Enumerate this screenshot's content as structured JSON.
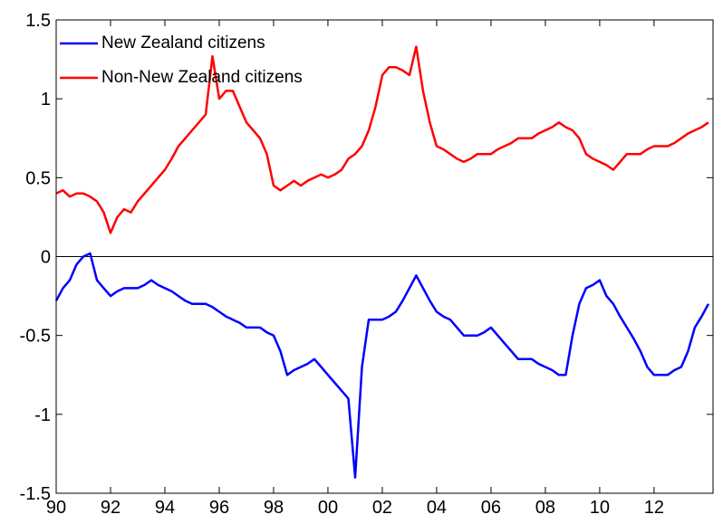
{
  "chart_data": {
    "type": "line",
    "x": [
      1990,
      1990.25,
      1990.5,
      1990.75,
      1991,
      1991.25,
      1991.5,
      1991.75,
      1992,
      1992.25,
      1992.5,
      1992.75,
      1993,
      1993.25,
      1993.5,
      1993.75,
      1994,
      1994.25,
      1994.5,
      1994.75,
      1995,
      1995.25,
      1995.5,
      1995.75,
      1996,
      1996.25,
      1996.5,
      1996.75,
      1997,
      1997.25,
      1997.5,
      1997.75,
      1998,
      1998.25,
      1998.5,
      1998.75,
      1999,
      1999.25,
      1999.5,
      1999.75,
      2000,
      2000.25,
      2000.5,
      2000.75,
      2001,
      2001.25,
      2001.5,
      2001.75,
      2002,
      2002.25,
      2002.5,
      2002.75,
      2003,
      2003.25,
      2003.5,
      2003.75,
      2004,
      2004.25,
      2004.5,
      2004.75,
      2005,
      2005.25,
      2005.5,
      2005.75,
      2006,
      2006.25,
      2006.5,
      2006.75,
      2007,
      2007.25,
      2007.5,
      2007.75,
      2008,
      2008.25,
      2008.5,
      2008.75,
      2009,
      2009.25,
      2009.5,
      2009.75,
      2010,
      2010.25,
      2010.5,
      2010.75,
      2011,
      2011.25,
      2011.5,
      2011.75,
      2012,
      2012.25,
      2012.5,
      2012.75,
      2013,
      2013.25,
      2013.5,
      2013.75,
      2014
    ],
    "series": [
      {
        "name": "New Zealand citizens",
        "color": "#0000ff",
        "values": [
          -0.28,
          -0.2,
          -0.15,
          -0.05,
          0,
          0.02,
          -0.15,
          -0.2,
          -0.25,
          -0.22,
          -0.2,
          -0.2,
          -0.2,
          -0.18,
          -0.15,
          -0.18,
          -0.2,
          -0.22,
          -0.25,
          -0.28,
          -0.3,
          -0.3,
          -0.3,
          -0.32,
          -0.35,
          -0.38,
          -0.4,
          -0.42,
          -0.45,
          -0.45,
          -0.45,
          -0.48,
          -0.5,
          -0.6,
          -0.75,
          -0.72,
          -0.7,
          -0.68,
          -0.65,
          -0.7,
          -0.75,
          -0.8,
          -0.85,
          -0.9,
          -1.4,
          -0.7,
          -0.4,
          -0.4,
          -0.4,
          -0.38,
          -0.35,
          -0.28,
          -0.2,
          -0.12,
          -0.2,
          -0.28,
          -0.35,
          -0.38,
          -0.4,
          -0.45,
          -0.5,
          -0.5,
          -0.5,
          -0.48,
          -0.45,
          -0.5,
          -0.55,
          -0.6,
          -0.65,
          -0.65,
          -0.65,
          -0.68,
          -0.7,
          -0.72,
          -0.75,
          -0.75,
          -0.5,
          -0.3,
          -0.2,
          -0.18,
          -0.15,
          -0.25,
          -0.3,
          -0.38,
          -0.45,
          -0.52,
          -0.6,
          -0.7,
          -0.75,
          -0.75,
          -0.75,
          -0.72,
          -0.7,
          -0.6,
          -0.45,
          -0.38,
          -0.3
        ]
      },
      {
        "name": "Non-New Zealand citizens",
        "color": "#ff0000",
        "values": [
          0.4,
          0.42,
          0.38,
          0.4,
          0.4,
          0.38,
          0.35,
          0.28,
          0.15,
          0.25,
          0.3,
          0.28,
          0.35,
          0.4,
          0.45,
          0.5,
          0.55,
          0.62,
          0.7,
          0.75,
          0.8,
          0.85,
          0.9,
          1.27,
          1,
          1.05,
          1.05,
          0.95,
          0.85,
          0.8,
          0.75,
          0.65,
          0.45,
          0.42,
          0.45,
          0.48,
          0.45,
          0.48,
          0.5,
          0.52,
          0.5,
          0.52,
          0.55,
          0.62,
          0.65,
          0.7,
          0.8,
          0.95,
          1.15,
          1.2,
          1.2,
          1.18,
          1.15,
          1.33,
          1.05,
          0.85,
          0.7,
          0.68,
          0.65,
          0.62,
          0.6,
          0.62,
          0.65,
          0.65,
          0.65,
          0.68,
          0.7,
          0.72,
          0.75,
          0.75,
          0.75,
          0.78,
          0.8,
          0.82,
          0.85,
          0.82,
          0.8,
          0.75,
          0.65,
          0.62,
          0.6,
          0.58,
          0.55,
          0.6,
          0.65,
          0.65,
          0.65,
          0.68,
          0.7,
          0.7,
          0.7,
          0.72,
          0.75,
          0.78,
          0.8,
          0.82,
          0.85
        ]
      }
    ],
    "xlim": [
      1990,
      2014.17
    ],
    "xticks": [
      {
        "value": 1990,
        "label": "90"
      },
      {
        "value": 1992,
        "label": "92"
      },
      {
        "value": 1994,
        "label": "94"
      },
      {
        "value": 1996,
        "label": "96"
      },
      {
        "value": 1998,
        "label": "98"
      },
      {
        "value": 2000,
        "label": "00"
      },
      {
        "value": 2002,
        "label": "02"
      },
      {
        "value": 2004,
        "label": "04"
      },
      {
        "value": 2006,
        "label": "06"
      },
      {
        "value": 2008,
        "label": "08"
      },
      {
        "value": 2010,
        "label": "10"
      },
      {
        "value": 2012,
        "label": "12"
      }
    ],
    "ylim": [
      -1.5,
      1.5
    ],
    "yticks": [
      -1.5,
      -1,
      -0.5,
      0,
      0.5,
      1,
      1.5
    ],
    "legend": "top-left"
  }
}
